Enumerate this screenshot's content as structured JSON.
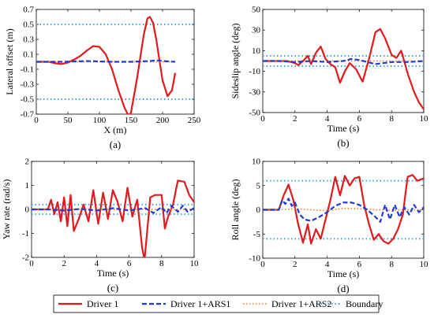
{
  "colors": {
    "driver1": "#e31a1c",
    "ars1": "#1f3bd6",
    "ars2": "#f07a1a",
    "boundary": "#3ba7dd"
  },
  "legend": {
    "placement": "bottom-center",
    "items": [
      {
        "label": "Driver 1",
        "style": "solid"
      },
      {
        "label": "Driver 1+ARS1",
        "style": "dashed"
      },
      {
        "label": "Driver 1+ARS2",
        "style": "dotted-orange"
      },
      {
        "label": "Boundary",
        "style": "dotted-blue"
      }
    ]
  },
  "chart_data": [
    {
      "type": "line",
      "panel_label": "(a)",
      "xlabel": "X (m)",
      "ylabel": "Lateral offset (m)",
      "xlim": [
        0,
        250
      ],
      "ylim": [
        -0.7,
        0.7
      ],
      "xticks": [
        0,
        50,
        100,
        150,
        200,
        250
      ],
      "yticks": [
        -0.7,
        -0.5,
        -0.3,
        -0.1,
        0.1,
        0.3,
        0.5,
        0.7
      ],
      "grid": false,
      "boundary": [
        0.5,
        -0.5
      ],
      "series": [
        {
          "name": "Driver 1",
          "key": "driver1",
          "x": [
            0,
            20,
            30,
            40,
            50,
            60,
            70,
            80,
            90,
            100,
            110,
            120,
            130,
            140,
            146,
            150,
            160,
            170,
            176,
            180,
            185,
            190,
            200,
            208,
            215,
            220
          ],
          "y": [
            0,
            0,
            -0.02,
            -0.03,
            -0.01,
            0.03,
            0.08,
            0.15,
            0.21,
            0.2,
            0.1,
            -0.1,
            -0.38,
            -0.62,
            -0.72,
            -0.68,
            -0.2,
            0.35,
            0.58,
            0.6,
            0.52,
            0.3,
            -0.25,
            -0.46,
            -0.38,
            -0.15
          ]
        },
        {
          "name": "Driver 1+ARS1",
          "key": "ars1",
          "x": [
            0,
            40,
            80,
            120,
            150,
            180,
            190,
            200,
            220
          ],
          "y": [
            0,
            0,
            0.01,
            0,
            0,
            0.01,
            0.02,
            0.01,
            0
          ]
        },
        {
          "name": "Driver 1+ARS2",
          "key": "ars2",
          "x": [
            0,
            50,
            100,
            150,
            200,
            220
          ],
          "y": [
            0,
            0,
            0,
            0,
            0,
            0
          ]
        }
      ]
    },
    {
      "type": "line",
      "panel_label": "(b)",
      "xlabel": "Time (s)",
      "ylabel": "Sideslip angle (deg)",
      "xlim": [
        0,
        10
      ],
      "ylim": [
        -50,
        50
      ],
      "xticks": [
        0,
        2,
        4,
        6,
        8,
        10
      ],
      "yticks": [
        -50,
        -30,
        -10,
        10,
        30,
        50
      ],
      "grid": false,
      "boundary": [
        5,
        -5
      ],
      "series": [
        {
          "name": "Driver 1",
          "key": "driver1",
          "x": [
            0,
            1,
            1.5,
            2,
            2.2,
            2.5,
            2.8,
            3,
            3.3,
            3.6,
            3.9,
            4.2,
            4.5,
            4.8,
            5.1,
            5.4,
            5.8,
            6.2,
            6.6,
            7,
            7.3,
            7.6,
            8,
            8.3,
            8.6,
            9,
            9.4,
            9.7,
            10
          ],
          "y": [
            0,
            0,
            0,
            -2,
            -4,
            0,
            5,
            -3,
            8,
            14,
            2,
            -3,
            -6,
            -21,
            -10,
            -2,
            -8,
            -20,
            2,
            28,
            31,
            22,
            6,
            3,
            10,
            -12,
            -30,
            -40,
            -47
          ]
        },
        {
          "name": "Driver 1+ARS1",
          "key": "ars1",
          "x": [
            0,
            1,
            2,
            3,
            4,
            5,
            5.5,
            6,
            6.5,
            7,
            8,
            9,
            10
          ],
          "y": [
            0,
            0,
            -1,
            0,
            -1,
            0,
            2,
            1,
            -1,
            -3,
            -1,
            -1,
            0
          ]
        },
        {
          "name": "Driver 1+ARS2",
          "key": "ars2",
          "x": [
            0,
            2,
            4,
            6,
            8,
            10
          ],
          "y": [
            0,
            0,
            0,
            0,
            0,
            0
          ]
        }
      ]
    },
    {
      "type": "line",
      "panel_label": "(c)",
      "xlabel": "Time (s)",
      "ylabel": "Yaw rate (rad/s)",
      "xlim": [
        0,
        10
      ],
      "ylim": [
        -2,
        2
      ],
      "xticks": [
        0,
        2,
        4,
        6,
        8,
        10
      ],
      "yticks": [
        -2,
        -1,
        0,
        1,
        2
      ],
      "grid": false,
      "boundary": [
        0.2,
        -0.2
      ],
      "series": [
        {
          "name": "Driver 1",
          "key": "driver1",
          "x": [
            0,
            1,
            1.2,
            1.4,
            1.6,
            1.8,
            2,
            2.2,
            2.4,
            2.6,
            2.9,
            3.2,
            3.5,
            3.8,
            4.1,
            4.4,
            4.7,
            5,
            5.3,
            5.6,
            5.9,
            6.2,
            6.5,
            6.8,
            6.95,
            7.1,
            7.3,
            7.6,
            8,
            8.2,
            8.4,
            8.7,
            9,
            9.4,
            9.7,
            10
          ],
          "y": [
            0,
            0,
            0.4,
            -0.2,
            0.3,
            -0.5,
            0.5,
            -0.7,
            0.6,
            -0.9,
            -0.4,
            0.2,
            -0.5,
            0.8,
            -0.6,
            0.7,
            -0.4,
            0.8,
            0.3,
            -0.5,
            0.9,
            -0.3,
            0.4,
            -1.6,
            -2.1,
            -1.0,
            0.5,
            0.6,
            0.6,
            -0.8,
            -0.3,
            0.2,
            1.2,
            1.15,
            0.6,
            0.3
          ]
        },
        {
          "name": "Driver 1+ARS1",
          "key": "ars1",
          "x": [
            0,
            1,
            2,
            3,
            4,
            5,
            6,
            7,
            7.5,
            8,
            8.3,
            8.6,
            9,
            9.3,
            9.6,
            10
          ],
          "y": [
            0,
            0,
            -0.05,
            0.02,
            -0.05,
            0.05,
            -0.05,
            0.05,
            -0.15,
            0.1,
            -0.15,
            0.15,
            -0.1,
            0.15,
            -0.1,
            0.05
          ]
        },
        {
          "name": "Driver 1+ARS2",
          "key": "ars2",
          "x": [
            0,
            2,
            4,
            6,
            8,
            10
          ],
          "y": [
            0,
            0,
            0,
            0,
            0,
            0
          ]
        }
      ]
    },
    {
      "type": "line",
      "panel_label": "(d)",
      "xlabel": "Time (s)",
      "ylabel": "Roll angle (deg)",
      "xlim": [
        0,
        10
      ],
      "ylim": [
        -10,
        10
      ],
      "xticks": [
        0,
        2,
        4,
        6,
        8,
        10
      ],
      "yticks": [
        -10,
        -5,
        0,
        5,
        10
      ],
      "grid": false,
      "boundary": [
        6,
        -6
      ],
      "series": [
        {
          "name": "Driver 1",
          "key": "driver1",
          "x": [
            0,
            1,
            1.3,
            1.6,
            1.9,
            2.2,
            2.5,
            2.8,
            3,
            3.3,
            3.6,
            3.9,
            4.2,
            4.5,
            4.8,
            5.1,
            5.4,
            5.7,
            6,
            6.3,
            6.6,
            6.9,
            7.2,
            7.5,
            7.8,
            8.1,
            8.4,
            8.7,
            9,
            9.3,
            9.6,
            10
          ],
          "y": [
            0,
            0,
            3,
            5.2,
            2,
            -3,
            -6.8,
            -3,
            -7,
            -4,
            -6,
            -2,
            2,
            6.8,
            3,
            7,
            5,
            6.5,
            6.8,
            1,
            -3,
            -6.2,
            -5,
            -6.5,
            -7,
            -6,
            -4,
            -1,
            6.8,
            7.2,
            6,
            6.5
          ]
        },
        {
          "name": "Driver 1+ARS1",
          "key": "ars1",
          "x": [
            0,
            1,
            1.2,
            1.4,
            1.6,
            1.8,
            2,
            2.3,
            2.6,
            3,
            3.5,
            4,
            4.5,
            5,
            5.5,
            6,
            6.5,
            7,
            7.3,
            7.6,
            7.9,
            8.2,
            8.5,
            8.8,
            9.1,
            9.4,
            9.7,
            10
          ],
          "y": [
            0,
            0,
            2,
            1.2,
            2.3,
            0.8,
            1.5,
            -1,
            -2,
            -2.3,
            -1.5,
            -0.5,
            0.8,
            1.5,
            1.5,
            1,
            0,
            -1.5,
            -2.5,
            1,
            -2,
            1,
            -1.5,
            0.5,
            -1,
            1,
            -0.5,
            0.5
          ]
        },
        {
          "name": "Driver 1+ARS2",
          "key": "ars2",
          "x": [
            0,
            1,
            2,
            3,
            4,
            5,
            6,
            7,
            8,
            9,
            10
          ],
          "y": [
            0,
            0,
            0.2,
            0,
            -0.2,
            0.3,
            0.2,
            0,
            -0.1,
            0,
            0
          ]
        }
      ]
    }
  ]
}
